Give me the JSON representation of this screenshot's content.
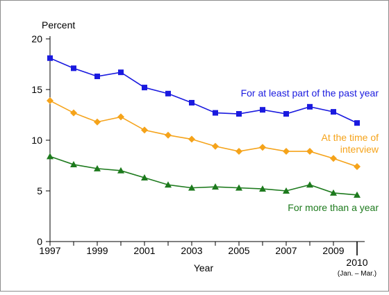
{
  "chart_data": {
    "type": "line",
    "ylabel": "Percent",
    "xlabel": "Year",
    "ylim": [
      0,
      20
    ],
    "yticks": [
      0,
      5,
      10,
      15,
      20
    ],
    "x": [
      1997,
      1998,
      1999,
      2000,
      2001,
      2002,
      2003,
      2004,
      2005,
      2006,
      2007,
      2008,
      2009,
      2010
    ],
    "xtick_values": [
      1997,
      1999,
      2001,
      2003,
      2005,
      2007,
      2009,
      2010
    ],
    "xtick_labels": [
      "1997",
      "1999",
      "2001",
      "2003",
      "2005",
      "2007",
      "2009",
      "2010"
    ],
    "last_tick_note": "(Jan. – Mar.)",
    "grid": false,
    "series": [
      {
        "name": "For at least part of the past year",
        "color": "#1a1adf",
        "marker": "square",
        "values": [
          18.1,
          17.1,
          16.3,
          16.7,
          15.2,
          14.6,
          13.7,
          12.7,
          12.6,
          13.0,
          12.6,
          13.3,
          12.8,
          11.7
        ]
      },
      {
        "name": "At the time of interview",
        "label_lines": [
          "At the time of",
          "interview"
        ],
        "color": "#f5a31a",
        "marker": "diamond",
        "values": [
          13.9,
          12.7,
          11.8,
          12.3,
          11.0,
          10.5,
          10.1,
          9.4,
          8.9,
          9.3,
          8.9,
          8.9,
          8.2,
          7.4
        ]
      },
      {
        "name": "For more than a year",
        "color": "#1d7a1d",
        "marker": "triangle",
        "values": [
          8.4,
          7.6,
          7.2,
          7.0,
          6.3,
          5.6,
          5.3,
          5.4,
          5.3,
          5.2,
          5.0,
          5.6,
          4.8,
          4.6
        ]
      }
    ]
  }
}
